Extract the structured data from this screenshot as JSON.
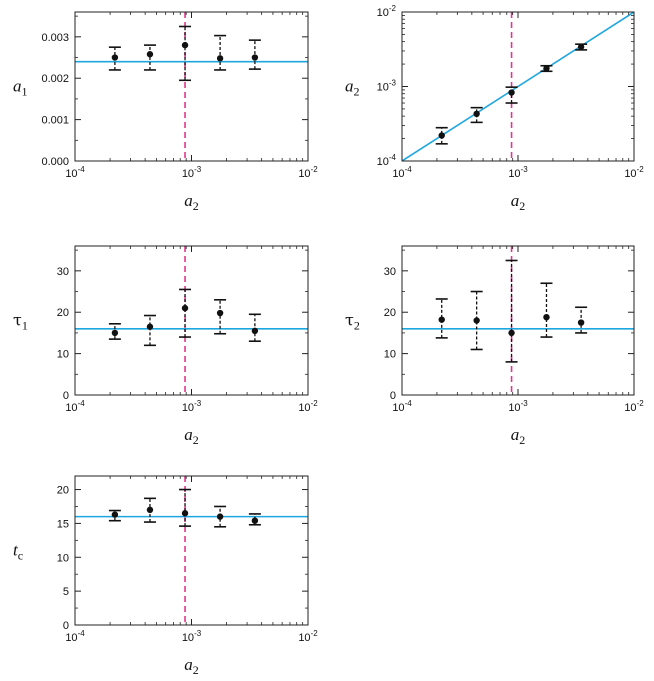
{
  "chart_data": [
    {
      "id": "p1",
      "type": "scatter",
      "x_scale": "log",
      "y_scale": "linear",
      "xlabel": {
        "var": "a",
        "sub": "2"
      },
      "ylabel": {
        "var": "a",
        "sub": "1"
      },
      "xlim": [
        0.0001,
        0.01
      ],
      "ylim": [
        0,
        0.0036
      ],
      "x_ticks": [
        {
          "value": 0.0001,
          "base": "10",
          "exp": "-4"
        },
        {
          "value": 0.001,
          "base": "10",
          "exp": "-3"
        },
        {
          "value": 0.01,
          "base": "10",
          "exp": "-2"
        }
      ],
      "y_ticks": [
        {
          "value": 0,
          "label": "0.000"
        },
        {
          "value": 0.001,
          "label": "0.001"
        },
        {
          "value": 0.002,
          "label": "0.002"
        },
        {
          "value": 0.003,
          "label": "0.003"
        }
      ],
      "points": [
        {
          "x": 0.00022,
          "y": 0.0025,
          "lo": 0.0022,
          "hi": 0.00275
        },
        {
          "x": 0.00044,
          "y": 0.00258,
          "lo": 0.0022,
          "hi": 0.0028
        },
        {
          "x": 0.00088,
          "y": 0.0028,
          "lo": 0.00195,
          "hi": 0.00325
        },
        {
          "x": 0.00176,
          "y": 0.00248,
          "lo": 0.0022,
          "hi": 0.00303
        },
        {
          "x": 0.0035,
          "y": 0.0025,
          "lo": 0.00222,
          "hi": 0.00292
        }
      ],
      "reference": {
        "type": "horizontal",
        "y": 0.0024
      },
      "vline_x": 0.00088
    },
    {
      "id": "p2",
      "type": "scatter",
      "x_scale": "log",
      "y_scale": "log",
      "xlabel": {
        "var": "a",
        "sub": "2"
      },
      "ylabel": {
        "var": "a",
        "sub": "2"
      },
      "xlim": [
        0.0001,
        0.01
      ],
      "ylim": [
        0.0001,
        0.01
      ],
      "x_ticks": [
        {
          "value": 0.0001,
          "base": "10",
          "exp": "-4"
        },
        {
          "value": 0.001,
          "base": "10",
          "exp": "-3"
        },
        {
          "value": 0.01,
          "base": "10",
          "exp": "-2"
        }
      ],
      "y_ticks": [
        {
          "value": 0.0001,
          "base": "10",
          "exp": "-4"
        },
        {
          "value": 0.001,
          "base": "10",
          "exp": "-3"
        },
        {
          "value": 0.01,
          "base": "10",
          "exp": "-2"
        }
      ],
      "points": [
        {
          "x": 0.00022,
          "y": 0.00022,
          "lo": 0.00017,
          "hi": 0.00028
        },
        {
          "x": 0.00044,
          "y": 0.00043,
          "lo": 0.00033,
          "hi": 0.00052
        },
        {
          "x": 0.00088,
          "y": 0.00083,
          "lo": 0.0006,
          "hi": 0.00098
        },
        {
          "x": 0.00176,
          "y": 0.00175,
          "lo": 0.0016,
          "hi": 0.0019
        },
        {
          "x": 0.0035,
          "y": 0.0034,
          "lo": 0.0031,
          "hi": 0.0037
        }
      ],
      "reference": {
        "type": "identity"
      },
      "vline_x": 0.00088
    },
    {
      "id": "p3",
      "type": "scatter",
      "x_scale": "log",
      "y_scale": "linear",
      "xlabel": {
        "var": "a",
        "sub": "2"
      },
      "ylabel": {
        "var": "τ",
        "sub": "1"
      },
      "xlim": [
        0.0001,
        0.01
      ],
      "ylim": [
        0,
        36
      ],
      "x_ticks": [
        {
          "value": 0.0001,
          "base": "10",
          "exp": "-4"
        },
        {
          "value": 0.001,
          "base": "10",
          "exp": "-3"
        },
        {
          "value": 0.01,
          "base": "10",
          "exp": "-2"
        }
      ],
      "y_ticks": [
        {
          "value": 0,
          "label": "0"
        },
        {
          "value": 10,
          "label": "10"
        },
        {
          "value": 20,
          "label": "20"
        },
        {
          "value": 30,
          "label": "30"
        }
      ],
      "points": [
        {
          "x": 0.00022,
          "y": 15.0,
          "lo": 13.5,
          "hi": 17.2
        },
        {
          "x": 0.00044,
          "y": 16.5,
          "lo": 12.0,
          "hi": 19.2
        },
        {
          "x": 0.00088,
          "y": 21.0,
          "lo": 14.0,
          "hi": 25.5
        },
        {
          "x": 0.00176,
          "y": 19.8,
          "lo": 14.8,
          "hi": 23.0
        },
        {
          "x": 0.0035,
          "y": 15.5,
          "lo": 13.0,
          "hi": 19.5
        }
      ],
      "reference": {
        "type": "horizontal",
        "y": 16
      },
      "vline_x": 0.00088
    },
    {
      "id": "p4",
      "type": "scatter",
      "x_scale": "log",
      "y_scale": "linear",
      "xlabel": {
        "var": "a",
        "sub": "2"
      },
      "ylabel": {
        "var": "τ",
        "sub": "2"
      },
      "xlim": [
        0.0001,
        0.01
      ],
      "ylim": [
        0,
        36
      ],
      "x_ticks": [
        {
          "value": 0.0001,
          "base": "10",
          "exp": "-4"
        },
        {
          "value": 0.001,
          "base": "10",
          "exp": "-3"
        },
        {
          "value": 0.01,
          "base": "10",
          "exp": "-2"
        }
      ],
      "y_ticks": [
        {
          "value": 0,
          "label": "0"
        },
        {
          "value": 10,
          "label": "10"
        },
        {
          "value": 20,
          "label": "20"
        },
        {
          "value": 30,
          "label": "30"
        }
      ],
      "points": [
        {
          "x": 0.00022,
          "y": 18.2,
          "lo": 13.8,
          "hi": 23.2
        },
        {
          "x": 0.00044,
          "y": 18.0,
          "lo": 11.0,
          "hi": 25.0
        },
        {
          "x": 0.00088,
          "y": 15.0,
          "lo": 8.0,
          "hi": 32.5
        },
        {
          "x": 0.00176,
          "y": 18.8,
          "lo": 14.0,
          "hi": 27.0
        },
        {
          "x": 0.0035,
          "y": 17.5,
          "lo": 15.0,
          "hi": 21.2
        }
      ],
      "reference": {
        "type": "horizontal",
        "y": 16
      },
      "vline_x": 0.00088
    },
    {
      "id": "p5",
      "type": "scatter",
      "x_scale": "log",
      "y_scale": "linear",
      "xlabel": {
        "var": "a",
        "sub": "2"
      },
      "ylabel": {
        "var": "t",
        "sub": "c"
      },
      "xlim": [
        0.0001,
        0.01
      ],
      "ylim": [
        0,
        22
      ],
      "x_ticks": [
        {
          "value": 0.0001,
          "base": "10",
          "exp": "-4"
        },
        {
          "value": 0.001,
          "base": "10",
          "exp": "-3"
        },
        {
          "value": 0.01,
          "base": "10",
          "exp": "-2"
        }
      ],
      "y_ticks": [
        {
          "value": 0,
          "label": "0"
        },
        {
          "value": 5,
          "label": "5"
        },
        {
          "value": 10,
          "label": "10"
        },
        {
          "value": 15,
          "label": "15"
        },
        {
          "value": 20,
          "label": "20"
        }
      ],
      "points": [
        {
          "x": 0.00022,
          "y": 16.3,
          "lo": 15.4,
          "hi": 16.9
        },
        {
          "x": 0.00044,
          "y": 17.0,
          "lo": 15.2,
          "hi": 18.7
        },
        {
          "x": 0.00088,
          "y": 16.5,
          "lo": 14.6,
          "hi": 20.0
        },
        {
          "x": 0.00176,
          "y": 16.0,
          "lo": 14.5,
          "hi": 17.5
        },
        {
          "x": 0.0035,
          "y": 15.4,
          "lo": 14.8,
          "hi": 16.4
        }
      ],
      "reference": {
        "type": "horizontal",
        "y": 16
      },
      "vline_x": 0.00088
    }
  ],
  "colors": {
    "reference_line": "#1ea7df",
    "vertical_marker": "#e0368d",
    "points": "#111111",
    "axes": "#222222"
  }
}
